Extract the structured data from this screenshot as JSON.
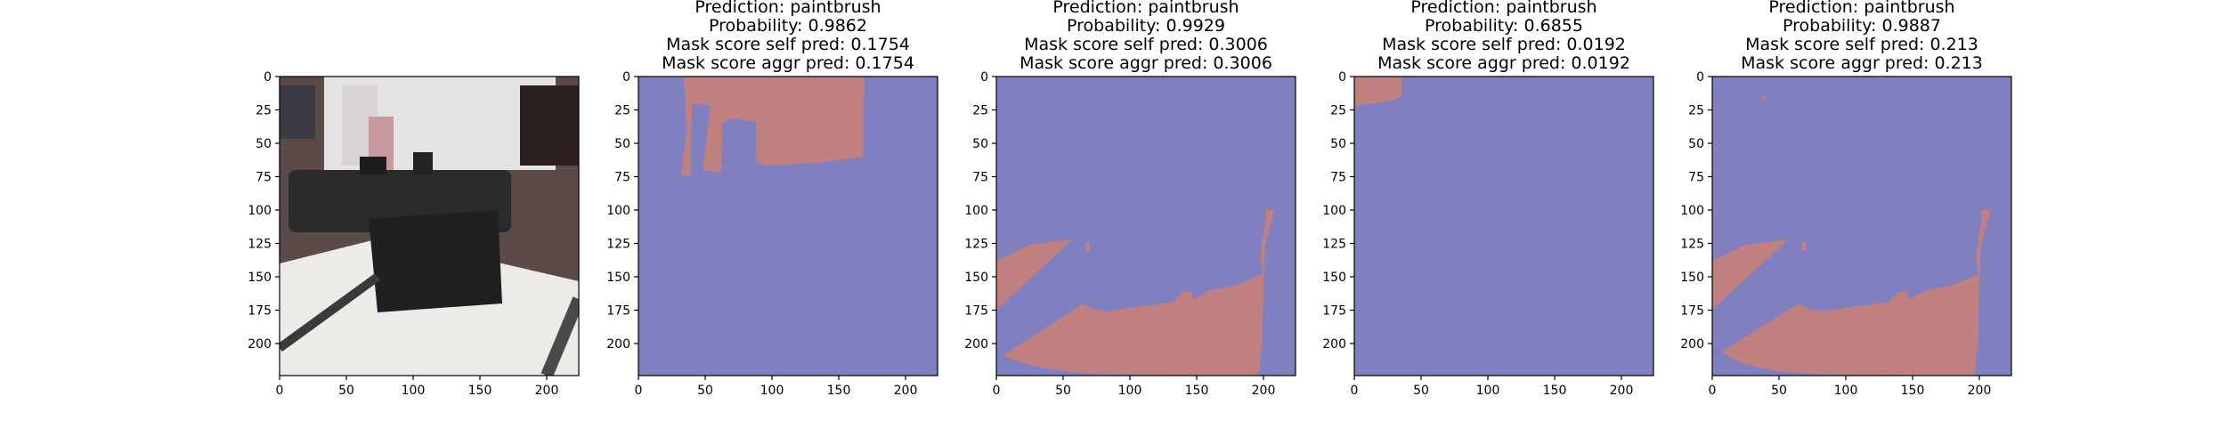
{
  "panel_colors": {
    "background_mask": "#8080c0",
    "foreground_mask": "#c08080",
    "frame": "#000000"
  },
  "chart_data": [
    {
      "type": "image",
      "title_lines": [],
      "xticks": [
        0,
        50,
        100,
        150,
        200
      ],
      "yticks": [
        0,
        25,
        50,
        75,
        100,
        125,
        150,
        175,
        200
      ],
      "xlim": [
        0,
        224
      ],
      "ylim": [
        224,
        0
      ],
      "image_description_icon": "photo-locomotive-on-workbench"
    },
    {
      "type": "heatmap",
      "title_lines": [
        "Prediction: paintbrush",
        "Probability: 0.9862",
        "Mask score self pred: 0.1754",
        "Mask score aggr pred: 0.1754"
      ],
      "xticks": [
        0,
        50,
        100,
        150,
        200
      ],
      "yticks": [
        0,
        25,
        50,
        75,
        100,
        125,
        150,
        175,
        200
      ],
      "xlim": [
        0,
        224
      ],
      "ylim": [
        224,
        0
      ],
      "mask_regions": [
        [
          [
            34,
            0
          ],
          [
            169,
            0
          ],
          [
            168,
            60
          ],
          [
            141,
            64
          ],
          [
            95,
            67
          ],
          [
            92,
            66
          ],
          [
            88,
            64
          ],
          [
            88,
            34
          ],
          [
            70,
            31
          ],
          [
            63,
            35
          ],
          [
            62,
            72
          ],
          [
            48,
            70
          ],
          [
            54,
            22
          ],
          [
            40,
            20
          ],
          [
            39,
            74
          ],
          [
            32,
            74
          ],
          [
            36,
            40
          ],
          [
            35,
            18
          ]
        ]
      ]
    },
    {
      "type": "heatmap",
      "title_lines": [
        "Prediction: paintbrush",
        "Probability: 0.9929",
        "Mask score self pred: 0.3006",
        "Mask score aggr pred: 0.3006"
      ],
      "xticks": [
        0,
        50,
        100,
        150,
        200
      ],
      "yticks": [
        0,
        25,
        50,
        75,
        100,
        125,
        150,
        175,
        200
      ],
      "xlim": [
        0,
        224
      ],
      "ylim": [
        224,
        0
      ],
      "mask_regions": [
        [
          [
            0,
            138
          ],
          [
            25,
            126
          ],
          [
            57,
            122
          ],
          [
            5,
            170
          ],
          [
            0,
            175
          ]
        ],
        [
          [
            5,
            209
          ],
          [
            65,
            170
          ],
          [
            72,
            174
          ],
          [
            82,
            176
          ],
          [
            102,
            173
          ],
          [
            132,
            169
          ],
          [
            140,
            161
          ],
          [
            147,
            161
          ],
          [
            146,
            168
          ],
          [
            160,
            160
          ],
          [
            177,
            157
          ],
          [
            188,
            153
          ],
          [
            199,
            148
          ],
          [
            199,
            145
          ],
          [
            198,
            140
          ],
          [
            198,
            131
          ],
          [
            199,
            124
          ],
          [
            202,
            106
          ],
          [
            201,
            100
          ],
          [
            208,
            100
          ],
          [
            207,
            106
          ],
          [
            205,
            112
          ],
          [
            201,
            128
          ],
          [
            200,
            160
          ],
          [
            199,
            197
          ],
          [
            197,
            220
          ],
          [
            195,
            224
          ],
          [
            78,
            223
          ],
          [
            52,
            221
          ],
          [
            35,
            218
          ],
          [
            26,
            216
          ],
          [
            14,
            213
          ]
        ],
        [
          [
            67,
            124
          ],
          [
            70,
            124
          ],
          [
            70,
            131
          ],
          [
            67,
            131
          ]
        ]
      ]
    },
    {
      "type": "heatmap",
      "title_lines": [
        "Prediction: paintbrush",
        "Probability: 0.6855",
        "Mask score self pred: 0.0192",
        "Mask score aggr pred: 0.0192"
      ],
      "xticks": [
        0,
        50,
        100,
        150,
        200
      ],
      "yticks": [
        0,
        25,
        50,
        75,
        100,
        125,
        150,
        175,
        200
      ],
      "xlim": [
        0,
        224
      ],
      "ylim": [
        224,
        0
      ],
      "mask_regions": [
        [
          [
            0,
            0
          ],
          [
            36,
            0
          ],
          [
            35,
            15
          ],
          [
            28,
            18
          ],
          [
            15,
            20
          ],
          [
            0,
            22
          ]
        ]
      ]
    },
    {
      "type": "heatmap",
      "title_lines": [
        "Prediction: paintbrush",
        "Probability: 0.9887",
        "Mask score self pred: 0.213",
        "Mask score aggr pred: 0.213"
      ],
      "xticks": [
        0,
        50,
        100,
        150,
        200
      ],
      "yticks": [
        0,
        25,
        50,
        75,
        100,
        125,
        150,
        175,
        200
      ],
      "xlim": [
        0,
        224
      ],
      "ylim": [
        224,
        0
      ],
      "mask_regions": [
        [
          [
            0,
            138
          ],
          [
            25,
            126
          ],
          [
            57,
            122
          ],
          [
            5,
            170
          ],
          [
            0,
            175
          ]
        ],
        [
          [
            7,
            206
          ],
          [
            65,
            170
          ],
          [
            72,
            174
          ],
          [
            82,
            176
          ],
          [
            102,
            173
          ],
          [
            132,
            169
          ],
          [
            140,
            161
          ],
          [
            147,
            161
          ],
          [
            146,
            168
          ],
          [
            160,
            160
          ],
          [
            177,
            157
          ],
          [
            188,
            153
          ],
          [
            199,
            148
          ],
          [
            199,
            145
          ],
          [
            198,
            140
          ],
          [
            198,
            131
          ],
          [
            199,
            124
          ],
          [
            202,
            106
          ],
          [
            201,
            100
          ],
          [
            208,
            100
          ],
          [
            207,
            106
          ],
          [
            205,
            112
          ],
          [
            201,
            128
          ],
          [
            200,
            160
          ],
          [
            199,
            197
          ],
          [
            197,
            220
          ],
          [
            195,
            224
          ],
          [
            78,
            223
          ],
          [
            52,
            221
          ],
          [
            35,
            218
          ],
          [
            26,
            216
          ],
          [
            16,
            212
          ]
        ],
        [
          [
            67,
            124
          ],
          [
            70,
            124
          ],
          [
            70,
            131
          ],
          [
            67,
            131
          ]
        ],
        [
          [
            38,
            15
          ],
          [
            40,
            15
          ],
          [
            40,
            18
          ],
          [
            38,
            18
          ]
        ]
      ]
    }
  ]
}
